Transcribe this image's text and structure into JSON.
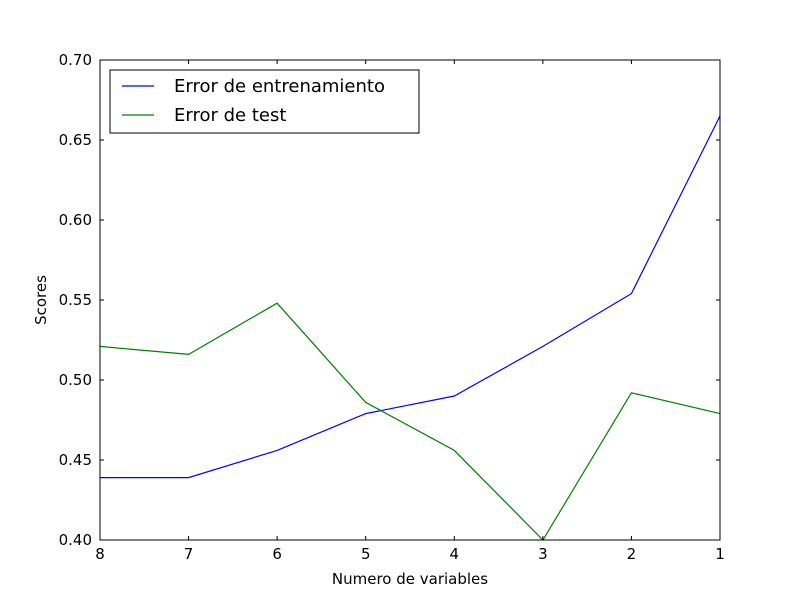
{
  "chart_data": {
    "type": "line",
    "title": "",
    "xlabel": "Numero de variables",
    "ylabel": "Scores",
    "categories": [
      "8",
      "7",
      "6",
      "5",
      "4",
      "3",
      "2",
      "1"
    ],
    "x": [
      8,
      7,
      6,
      5,
      4,
      3,
      2,
      1
    ],
    "xlim": [
      8,
      1
    ],
    "ylim": [
      0.4,
      0.7
    ],
    "yticks": [
      "0.40",
      "0.45",
      "0.50",
      "0.55",
      "0.60",
      "0.65",
      "0.70"
    ],
    "grid": false,
    "legend_position": "top-left",
    "series": [
      {
        "name": "Error de entrenamiento",
        "color": "#0000ff",
        "values": [
          0.439,
          0.439,
          0.456,
          0.479,
          0.49,
          0.521,
          0.554,
          0.665
        ]
      },
      {
        "name": "Error de test",
        "color": "#008000",
        "values": [
          0.521,
          0.516,
          0.548,
          0.486,
          0.456,
          0.4,
          0.492,
          0.479
        ]
      }
    ]
  }
}
